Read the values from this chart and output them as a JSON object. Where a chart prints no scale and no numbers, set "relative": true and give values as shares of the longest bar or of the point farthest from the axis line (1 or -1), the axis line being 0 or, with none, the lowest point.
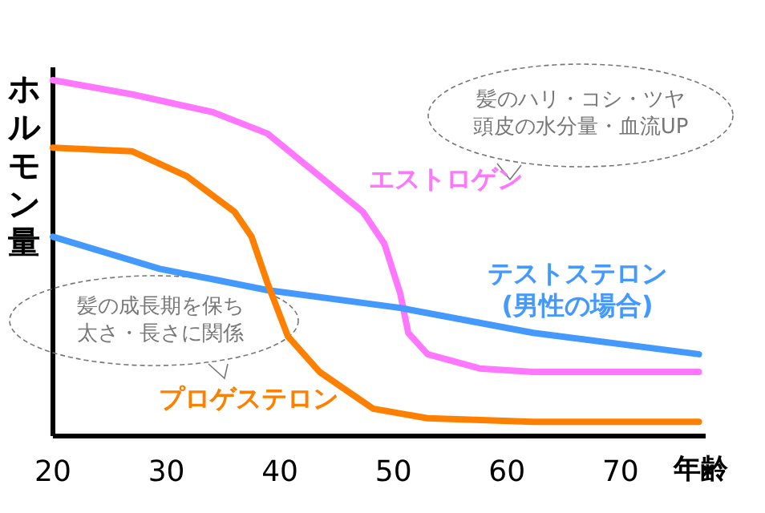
{
  "chart_data": {
    "type": "line",
    "relative": true,
    "xlabel": "年齢",
    "ylabel": "ホルモン量",
    "xlim": [
      20,
      77.5
    ],
    "xticks": [
      20,
      30,
      40,
      50,
      60,
      70
    ],
    "tick_labels": "x",
    "line_style": "solid",
    "marker": "none",
    "series": [
      {
        "name": "エストロゲン",
        "color": "#ff77ff",
        "x": [
          20,
          27,
          34.1,
          38.9,
          43.5,
          47.3,
          49.2,
          50.6,
          51.3,
          53,
          57.6,
          62.3,
          76.9
        ],
        "values": [
          1.0,
          0.96,
          0.91,
          0.85,
          0.73,
          0.63,
          0.54,
          0.4,
          0.29,
          0.23,
          0.19,
          0.18,
          0.18
        ]
      },
      {
        "name": "テストステロン\n(男性の場合)",
        "color": "#4499ff",
        "x": [
          20,
          29.4,
          38.9,
          50.6,
          62.3,
          76.9
        ],
        "values": [
          0.56,
          0.47,
          0.41,
          0.36,
          0.29,
          0.23
        ]
      },
      {
        "name": "プロゲステロン",
        "color": "#ff8000",
        "x": [
          20,
          27,
          31.8,
          36,
          37.5,
          38.9,
          40.7,
          43.5,
          48.2,
          53,
          62.3,
          76.9
        ],
        "values": [
          0.81,
          0.8,
          0.73,
          0.63,
          0.56,
          0.43,
          0.28,
          0.18,
          0.077,
          0.05,
          0.04,
          0.04
        ]
      }
    ],
    "annotations": [
      "髪のハリ・コシ・ツヤ頭皮の水分量・血流UP",
      "髪の成長期を保ち太さ・長さに関係"
    ]
  }
}
